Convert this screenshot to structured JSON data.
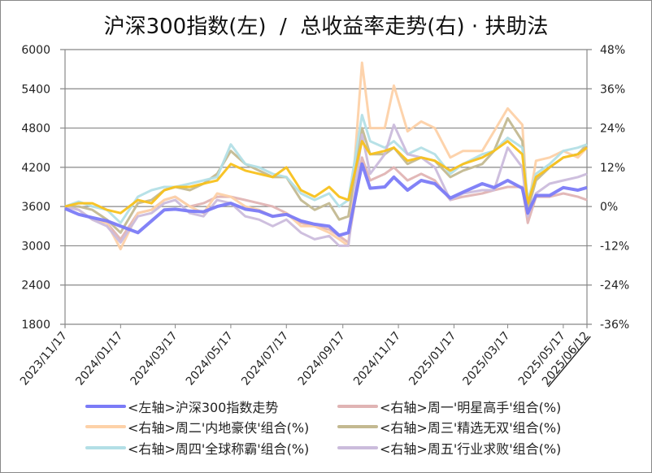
{
  "chart_data": {
    "type": "line",
    "title": "沪深300指数(左)  /  总收益率走势(右) · 扶助法",
    "y_left": {
      "ticks": [
        "6000",
        "5400",
        "4800",
        "4200",
        "3600",
        "3000",
        "2400",
        "1800"
      ],
      "range": [
        1800,
        6000
      ]
    },
    "y_right": {
      "ticks": [
        "48%",
        "36%",
        "24%",
        "12%",
        "0%",
        "-12%",
        "-24%",
        "-36%"
      ],
      "range": [
        -36,
        48
      ],
      "negative_color": "#00dd00"
    },
    "x_ticks": [
      "2023/11/17",
      "2024/01/17",
      "2024/03/17",
      "2024/05/17",
      "2024/07/17",
      "2024/09/17",
      "2024/11/17",
      "2025/01/17",
      "2025/03/17",
      "2025/05/17"
    ],
    "x_end_label": "2025/06/12",
    "x_end_color": "#ff0000",
    "grid": true,
    "legend_position": "bottom",
    "x": [
      "2023/11/17",
      "2023/12/02",
      "2023/12/17",
      "2024/01/02",
      "2024/01/17",
      "2024/02/05",
      "2024/02/20",
      "2024/03/05",
      "2024/03/17",
      "2024/04/02",
      "2024/04/17",
      "2024/05/02",
      "2024/05/17",
      "2024/06/02",
      "2024/06/17",
      "2024/07/02",
      "2024/07/17",
      "2024/08/02",
      "2024/08/17",
      "2024/09/02",
      "2024/09/13",
      "2024/09/23",
      "2024/10/08",
      "2024/10/17",
      "2024/11/02",
      "2024/11/12",
      "2024/11/27",
      "2024/12/12",
      "2024/12/27",
      "2025/01/13",
      "2025/01/27",
      "2025/02/17",
      "2025/03/02",
      "2025/03/17",
      "2025/04/02",
      "2025/04/08",
      "2025/04/17",
      "2025/05/02",
      "2025/05/17",
      "2025/06/02",
      "2025/06/12"
    ],
    "series": [
      {
        "name": "<左轴>沪深300指数走势",
        "axis": "left",
        "color": "#7b7bf7",
        "width": 4,
        "values": [
          3570,
          3480,
          3430,
          3380,
          3300,
          3200,
          3380,
          3550,
          3560,
          3530,
          3520,
          3600,
          3650,
          3560,
          3530,
          3450,
          3480,
          3380,
          3330,
          3300,
          3160,
          3200,
          4250,
          3880,
          3900,
          4050,
          3850,
          4000,
          3950,
          3730,
          3820,
          3950,
          3890,
          4000,
          3880,
          3500,
          3770,
          3770,
          3890,
          3850,
          3890
        ]
      },
      {
        "name": "<右轴>周一'明星高手'组合(%)",
        "axis": "right",
        "color": "#e0b4b4",
        "width": 3,
        "values": [
          0,
          -1,
          -4,
          -5,
          -10,
          -2,
          -1,
          2,
          3,
          0,
          1,
          3,
          3,
          2,
          1,
          0,
          -2,
          -5,
          -6,
          -7,
          -9,
          -11,
          15,
          8,
          10,
          12,
          8,
          10,
          8,
          2,
          3,
          4,
          5,
          6,
          6,
          -5,
          3,
          3,
          4,
          3,
          2
        ]
      },
      {
        "name": "<右轴>周二'内地豪侠'组合(%)",
        "axis": "right",
        "color": "#fdd1a8",
        "width": 3,
        "values": [
          0,
          -1,
          -4,
          -5,
          -13,
          -2,
          -1,
          2,
          3,
          0,
          -2,
          4,
          3,
          0,
          -1,
          -3,
          -2,
          -6,
          -6,
          -8,
          -10,
          -12,
          44,
          24,
          24,
          37,
          23,
          26,
          24,
          15,
          17,
          17,
          23,
          30,
          25,
          -1,
          14,
          15,
          17,
          15,
          18
        ]
      },
      {
        "name": "<右轴>周三'精选无双'组合(%)",
        "axis": "right",
        "color": "#c3b991",
        "width": 3,
        "values": [
          0,
          0,
          -1,
          -4,
          -8,
          1,
          2,
          5,
          6,
          5,
          7,
          10,
          17,
          13,
          11,
          9,
          9,
          2,
          -1,
          1,
          -4,
          -3,
          24,
          16,
          16,
          18,
          13,
          15,
          14,
          9,
          11,
          13,
          17,
          27,
          20,
          -1,
          8,
          12,
          15,
          16,
          19
        ]
      },
      {
        "name": "<右轴>周四'全球称霸'组合(%)",
        "axis": "right",
        "color": "#b3dfe6",
        "width": 3,
        "values": [
          0,
          1.5,
          0,
          -1,
          -5,
          3,
          5,
          6,
          6,
          7,
          8,
          9,
          19,
          13,
          12,
          10,
          9,
          4,
          2,
          4,
          0,
          2,
          28,
          20,
          18,
          20,
          16,
          18,
          16,
          10,
          13,
          16,
          17,
          21,
          18,
          2,
          10,
          13,
          17,
          18,
          19
        ]
      },
      {
        "name": "<右轴>周五'行业求败'组合(%)",
        "axis": "right",
        "color": "#cbbcdc",
        "width": 3,
        "values": [
          0,
          -1,
          -4,
          -6,
          -11,
          -3,
          -2,
          1,
          2,
          -2,
          -3,
          2,
          1,
          -3,
          -4,
          -6,
          -4,
          -8,
          -10,
          -9,
          -12,
          -12,
          22,
          10,
          16,
          25,
          16,
          15,
          12,
          2,
          4,
          5,
          5,
          18,
          12,
          -3,
          4,
          7,
          8,
          9,
          10
        ]
      },
      {
        "axis": "right",
        "color": "#f8c11c",
        "width": 3,
        "values": [
          0,
          1,
          1,
          -1,
          -2,
          2,
          1,
          5,
          6,
          6,
          7,
          8,
          13,
          11,
          10,
          9,
          12,
          5,
          3,
          6,
          3,
          2,
          20,
          16,
          17,
          18,
          14,
          15,
          14,
          11,
          13,
          15,
          17,
          20,
          16,
          1,
          9,
          12,
          15,
          16,
          18
        ]
      }
    ]
  }
}
